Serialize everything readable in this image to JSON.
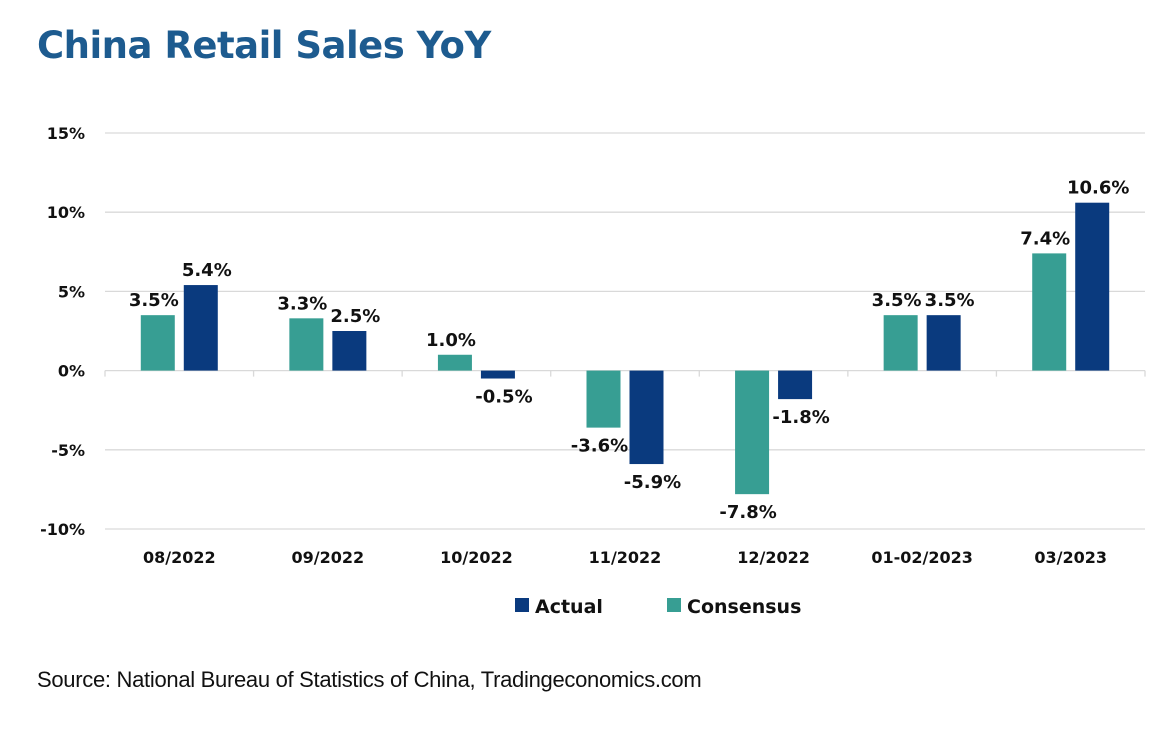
{
  "title": "China Retail Sales YoY",
  "source": "Source: National Bureau of Statistics of China, Tradingeconomics.com",
  "colors": {
    "title": "#1d5b8f",
    "actual": "#0a3a7e",
    "consensus": "#379e93",
    "grid": "#d9d9d9"
  },
  "chart_data": {
    "type": "bar",
    "title": "China Retail Sales YoY",
    "xlabel": "",
    "ylabel": "",
    "categories": [
      "08/2022",
      "09/2022",
      "10/2022",
      "11/2022",
      "12/2022",
      "01-02/2023",
      "03/2023"
    ],
    "series": [
      {
        "name": "Consensus",
        "color": "#379e93",
        "values": [
          3.5,
          3.3,
          1.0,
          -3.6,
          -7.8,
          3.5,
          7.4
        ],
        "labels": [
          "3.5%",
          "3.3%",
          "1.0%",
          "-3.6%",
          "-7.8%",
          "3.5%",
          "7.4%"
        ]
      },
      {
        "name": "Actual",
        "color": "#0a3a7e",
        "values": [
          5.4,
          2.5,
          -0.5,
          -5.9,
          -1.8,
          3.5,
          10.6
        ],
        "labels": [
          "5.4%",
          "2.5%",
          "-0.5%",
          "-5.9%",
          "-1.8%",
          "3.5%",
          "10.6%"
        ]
      }
    ],
    "ylim": [
      -10,
      15
    ],
    "yticks": [
      15,
      10,
      5,
      0,
      -5,
      -10
    ],
    "ytick_labels": [
      "15%",
      "10%",
      "5%",
      "0%",
      "-5%",
      "-10%"
    ],
    "grid": true,
    "legend": {
      "placement": "bottom-center",
      "entries": [
        {
          "name": "Actual",
          "color": "#0a3a7e"
        },
        {
          "name": "Consensus",
          "color": "#379e93"
        }
      ]
    }
  }
}
